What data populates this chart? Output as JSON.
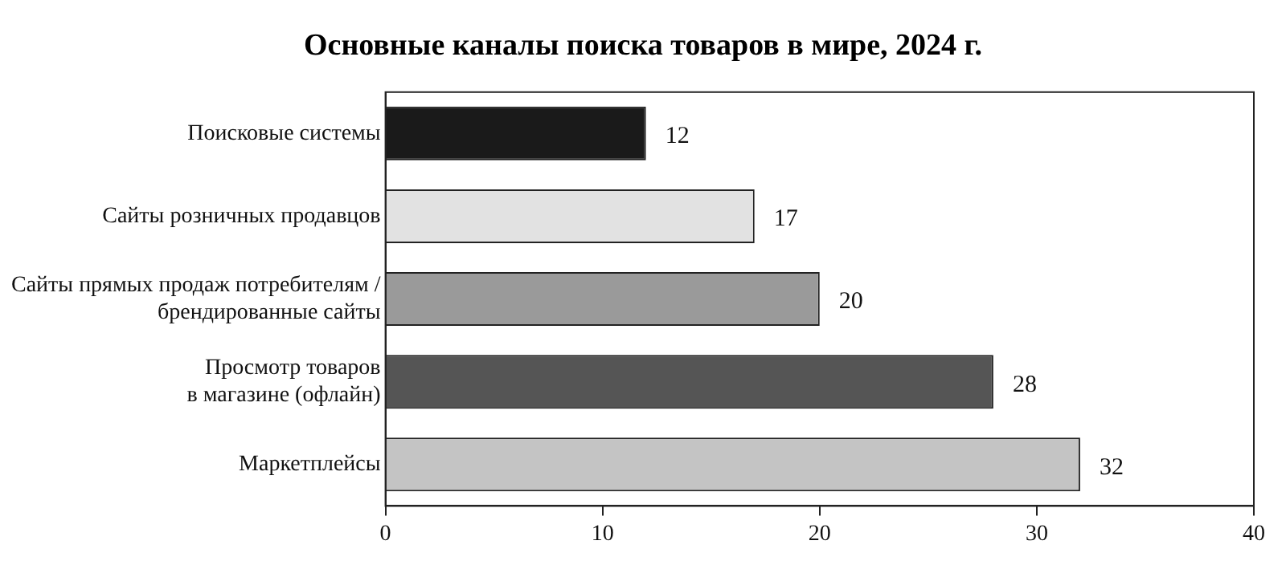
{
  "chart_data": {
    "type": "bar",
    "orientation": "horizontal",
    "title": "Основные каналы поиска товаров в мире, 2024 г.",
    "categories": [
      "Поисковые системы",
      "Сайты розничных продавцов",
      "Сайты прямых продаж потребителям /\nбрендированные сайты",
      "Просмотр товаров\nв магазине (офлайн)",
      "Маркетплейсы"
    ],
    "values": [
      12,
      17,
      20,
      28,
      32
    ],
    "colors": [
      "#1a1a1a",
      "#e2e2e2",
      "#9a9a9a",
      "#555555",
      "#c4c4c4"
    ],
    "xlim": [
      0,
      40
    ],
    "xticks": [
      0,
      10,
      20,
      30,
      40
    ],
    "grid": false,
    "legend": false,
    "data_labels": true
  }
}
